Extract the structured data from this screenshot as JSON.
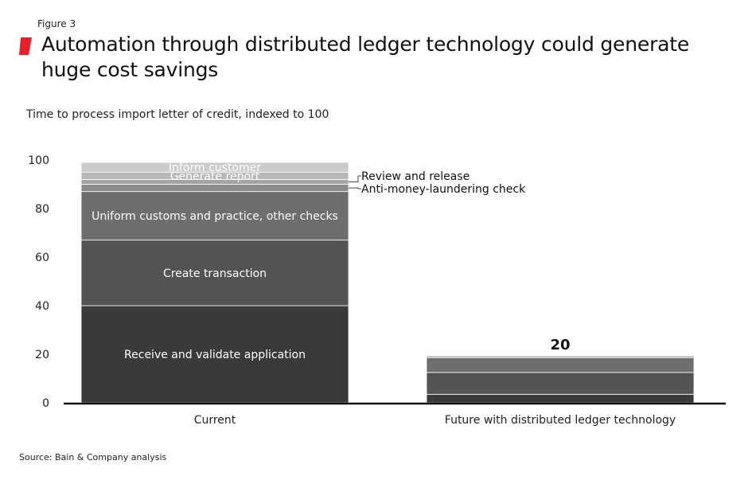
{
  "figure_label": "Figure 3",
  "title": "Automation through distributed ledger technology could generate huge cost savings",
  "subtitle": "Time to process import letter of credit, indexed to 100",
  "source": "Source: Bain & Company analysis",
  "colors": {
    "accent": "#e8202a",
    "segments": [
      "#3a3a3a",
      "#545454",
      "#6e6e6e",
      "#8c8c8c",
      "#a3a3a3",
      "#b8b8b8",
      "#cbcbcb"
    ]
  },
  "chart_data": {
    "type": "bar",
    "stacked": true,
    "categories": [
      "Current",
      "Future with distributed ledger technology"
    ],
    "ylim": [
      0,
      100
    ],
    "yticks": [
      0,
      20,
      40,
      60,
      80,
      100
    ],
    "grid": false,
    "series": [
      {
        "name": "Receive and validate application",
        "values": [
          40,
          3.5
        ]
      },
      {
        "name": "Create transaction",
        "values": [
          27,
          9
        ]
      },
      {
        "name": "Uniform customs and practice, other checks",
        "values": [
          20,
          6
        ]
      },
      {
        "name": "Anti-money-laundering check",
        "values": [
          3,
          0.6
        ]
      },
      {
        "name": "Review and release",
        "values": [
          2,
          0.4
        ]
      },
      {
        "name": "Generate report",
        "values": [
          3,
          0.3
        ]
      },
      {
        "name": "Inform customer",
        "values": [
          4,
          0.2
        ]
      }
    ],
    "totals": [
      100,
      20
    ],
    "total_labels": [
      "",
      "20"
    ],
    "segment_labels": [
      {
        "series": 0,
        "bar": 0,
        "text": "Receive and validate application",
        "placement": "inside"
      },
      {
        "series": 1,
        "bar": 0,
        "text": "Create transaction",
        "placement": "inside"
      },
      {
        "series": 2,
        "bar": 0,
        "text": "Uniform customs and practice, other checks",
        "placement": "inside"
      },
      {
        "series": 5,
        "bar": 0,
        "text": "Generate report",
        "placement": "inside"
      },
      {
        "series": 6,
        "bar": 0,
        "text": "Inform customer",
        "placement": "inside"
      },
      {
        "series": 4,
        "bar": 0,
        "text": "Review and release",
        "placement": "callout"
      },
      {
        "series": 3,
        "bar": 0,
        "text": "Anti-money-laundering check",
        "placement": "callout"
      }
    ]
  }
}
